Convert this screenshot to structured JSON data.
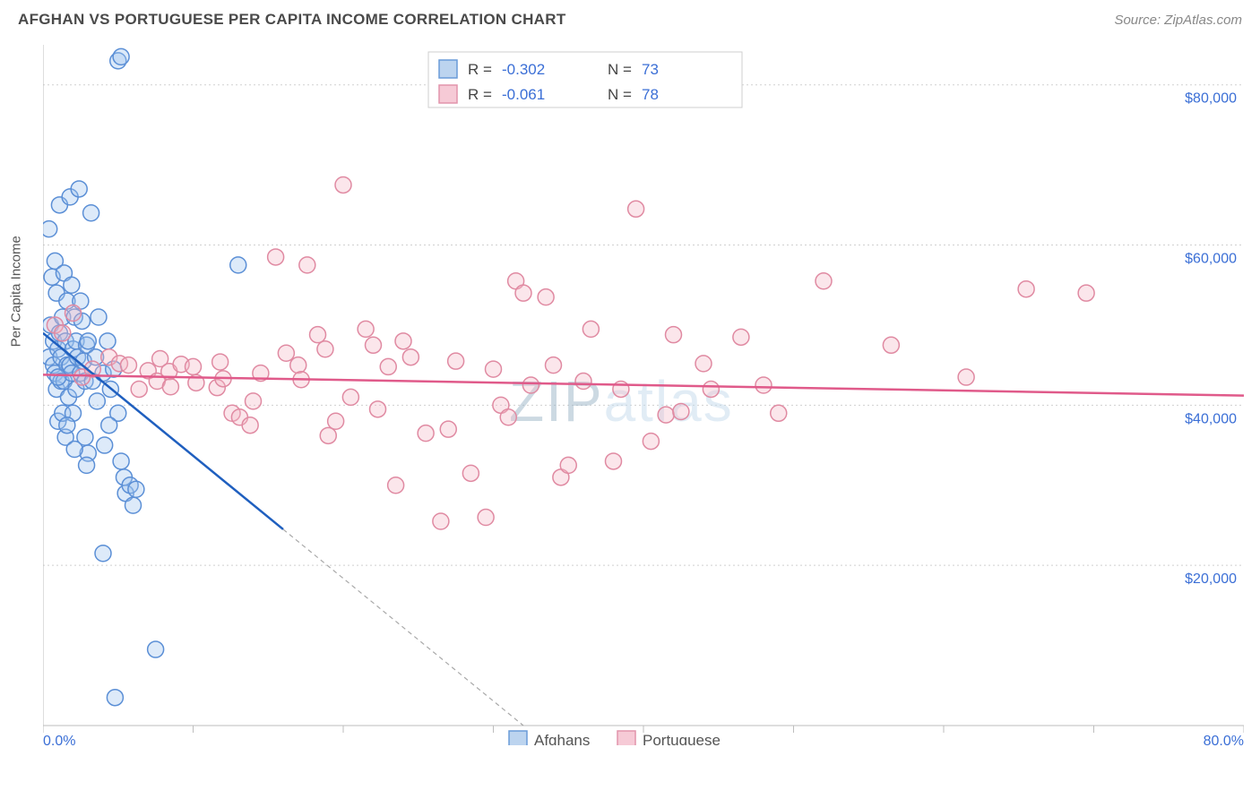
{
  "header": {
    "title": "AFGHAN VS PORTUGUESE PER CAPITA INCOME CORRELATION CHART",
    "source": "Source: ZipAtlas.com"
  },
  "y_axis_label": "Per Capita Income",
  "watermark": {
    "left": "ZIP",
    "right": "atlas"
  },
  "chart": {
    "type": "scatter",
    "background_color": "#ffffff",
    "grid_color": "#d0d0d0",
    "axis_color": "#bdbdbd",
    "xlim": [
      0,
      80
    ],
    "ylim": [
      0,
      85000
    ],
    "x_ticks": [
      0,
      10,
      20,
      30,
      40,
      50,
      60,
      70,
      80
    ],
    "y_ticks": [
      20000,
      40000,
      60000,
      80000
    ],
    "x_tick_labels": {
      "0": "0.0%",
      "80": "80.0%"
    },
    "y_tick_labels": {
      "20000": "$20,000",
      "40000": "$40,000",
      "60000": "$60,000",
      "80000": "$80,000"
    },
    "tick_label_color": "#3b6fd6",
    "tick_label_fontsize": 16,
    "marker_radius": 9,
    "marker_fill_opacity": 0.35,
    "series": {
      "afghans": {
        "label": "Afghans",
        "fill": "#9fc3ed",
        "stroke": "#5b8fd6",
        "trend_color": "#1f5fbf",
        "trend_dash_color": "#a9a9a9",
        "trend": {
          "x0": 0,
          "y0": 49000,
          "x1": 16,
          "y1": 24500,
          "x2": 32,
          "y2": 0
        },
        "points": [
          [
            0.4,
            62000
          ],
          [
            0.4,
            46000
          ],
          [
            0.5,
            50000
          ],
          [
            0.6,
            56000
          ],
          [
            0.7,
            45000
          ],
          [
            0.7,
            48000
          ],
          [
            0.8,
            58000
          ],
          [
            0.8,
            44000
          ],
          [
            0.9,
            54000
          ],
          [
            0.9,
            42000
          ],
          [
            1.0,
            47000
          ],
          [
            1.0,
            38000
          ],
          [
            1.1,
            49000
          ],
          [
            1.1,
            65000
          ],
          [
            1.2,
            43000
          ],
          [
            1.2,
            46000
          ],
          [
            1.3,
            51000
          ],
          [
            1.3,
            39000
          ],
          [
            1.4,
            56500
          ],
          [
            1.4,
            43000
          ],
          [
            1.5,
            48000
          ],
          [
            1.5,
            36000
          ],
          [
            1.6,
            45000
          ],
          [
            1.6,
            53000
          ],
          [
            1.7,
            41000
          ],
          [
            1.8,
            66000
          ],
          [
            1.8,
            45000
          ],
          [
            1.9,
            55000
          ],
          [
            1.9,
            44000
          ],
          [
            2.0,
            47000
          ],
          [
            2.0,
            39000
          ],
          [
            2.1,
            51000
          ],
          [
            2.2,
            42000
          ],
          [
            2.2,
            48000
          ],
          [
            2.3,
            46000
          ],
          [
            2.4,
            67000
          ],
          [
            2.5,
            44000
          ],
          [
            2.5,
            53000
          ],
          [
            2.6,
            50500
          ],
          [
            2.7,
            45500
          ],
          [
            2.8,
            43000
          ],
          [
            2.9,
            47500
          ],
          [
            3.0,
            34000
          ],
          [
            3.0,
            48000
          ],
          [
            3.2,
            64000
          ],
          [
            3.3,
            43000
          ],
          [
            3.5,
            46000
          ],
          [
            3.7,
            51000
          ],
          [
            4.0,
            44000
          ],
          [
            4.1,
            35000
          ],
          [
            4.3,
            48000
          ],
          [
            4.5,
            42000
          ],
          [
            4.7,
            44500
          ],
          [
            5.0,
            39000
          ],
          [
            5.2,
            33000
          ],
          [
            5.4,
            31000
          ],
          [
            5.5,
            29000
          ],
          [
            5.8,
            30000
          ],
          [
            6.0,
            27500
          ],
          [
            6.2,
            29500
          ],
          [
            5.0,
            83000
          ],
          [
            5.2,
            83500
          ],
          [
            4.8,
            3500
          ],
          [
            4.0,
            21500
          ],
          [
            7.5,
            9500
          ],
          [
            13.0,
            57500
          ],
          [
            2.8,
            36000
          ],
          [
            3.6,
            40500
          ],
          [
            4.4,
            37500
          ],
          [
            1.6,
            37500
          ],
          [
            2.1,
            34500
          ],
          [
            2.9,
            32500
          ],
          [
            1.0,
            43500
          ]
        ]
      },
      "portuguese": {
        "label": "Portuguese",
        "fill": "#f4b6c6",
        "stroke": "#e08aa2",
        "trend_color": "#e05a8a",
        "trend": {
          "x0": 0,
          "y0": 43800,
          "x1": 80,
          "y1": 41200
        },
        "points": [
          [
            0.8,
            50000
          ],
          [
            1.3,
            49000
          ],
          [
            2.0,
            51500
          ],
          [
            2.6,
            43500
          ],
          [
            3.3,
            44500
          ],
          [
            4.4,
            46000
          ],
          [
            5.1,
            45200
          ],
          [
            5.7,
            45000
          ],
          [
            6.4,
            42000
          ],
          [
            7.0,
            44300
          ],
          [
            7.6,
            43000
          ],
          [
            7.8,
            45800
          ],
          [
            8.4,
            44200
          ],
          [
            8.5,
            42300
          ],
          [
            9.2,
            45100
          ],
          [
            10.0,
            44800
          ],
          [
            10.2,
            42800
          ],
          [
            11.6,
            42200
          ],
          [
            11.8,
            45400
          ],
          [
            12.0,
            43300
          ],
          [
            12.6,
            39000
          ],
          [
            13.1,
            38500
          ],
          [
            13.8,
            37500
          ],
          [
            14.0,
            40500
          ],
          [
            14.5,
            44000
          ],
          [
            15.5,
            58500
          ],
          [
            16.2,
            46500
          ],
          [
            17.0,
            45000
          ],
          [
            17.2,
            43200
          ],
          [
            17.6,
            57500
          ],
          [
            18.3,
            48800
          ],
          [
            18.8,
            47000
          ],
          [
            19.0,
            36200
          ],
          [
            19.5,
            38000
          ],
          [
            20.0,
            67500
          ],
          [
            20.5,
            41000
          ],
          [
            21.5,
            49500
          ],
          [
            22.0,
            47500
          ],
          [
            22.3,
            39500
          ],
          [
            23.0,
            44800
          ],
          [
            23.5,
            30000
          ],
          [
            24.0,
            48000
          ],
          [
            24.5,
            46000
          ],
          [
            25.5,
            36500
          ],
          [
            26.5,
            25500
          ],
          [
            27.0,
            37000
          ],
          [
            27.5,
            45500
          ],
          [
            28.5,
            31500
          ],
          [
            29.5,
            26000
          ],
          [
            30.0,
            44500
          ],
          [
            30.5,
            40000
          ],
          [
            31.0,
            38500
          ],
          [
            31.5,
            55500
          ],
          [
            32.0,
            54000
          ],
          [
            32.5,
            42500
          ],
          [
            33.5,
            53500
          ],
          [
            34.0,
            45000
          ],
          [
            34.5,
            31000
          ],
          [
            35.0,
            32500
          ],
          [
            36.0,
            43000
          ],
          [
            36.5,
            49500
          ],
          [
            38.0,
            33000
          ],
          [
            38.5,
            42000
          ],
          [
            39.5,
            64500
          ],
          [
            40.5,
            35500
          ],
          [
            41.5,
            38800
          ],
          [
            42.0,
            48800
          ],
          [
            42.5,
            39200
          ],
          [
            44.0,
            45200
          ],
          [
            44.5,
            42000
          ],
          [
            46.5,
            48500
          ],
          [
            48.0,
            42500
          ],
          [
            49.0,
            39000
          ],
          [
            52.0,
            55500
          ],
          [
            56.5,
            47500
          ],
          [
            61.5,
            43500
          ],
          [
            65.5,
            54500
          ],
          [
            69.5,
            54000
          ]
        ]
      }
    }
  },
  "legend_top": {
    "border_color": "#cfcfcf",
    "rows": [
      {
        "swatch_fill": "#bcd4ef",
        "swatch_stroke": "#6a9bd8",
        "r_label": "R =",
        "r_val": "-0.302",
        "n_label": "N =",
        "n_val": "73"
      },
      {
        "swatch_fill": "#f6cad6",
        "swatch_stroke": "#e294ac",
        "r_label": "R =",
        "r_val": "-0.061",
        "n_label": "N =",
        "n_val": "78"
      }
    ]
  },
  "legend_bottom": {
    "items": [
      {
        "fill": "#bcd4ef",
        "stroke": "#6a9bd8",
        "label": "Afghans"
      },
      {
        "fill": "#f6cad6",
        "stroke": "#e294ac",
        "label": "Portuguese"
      }
    ]
  }
}
